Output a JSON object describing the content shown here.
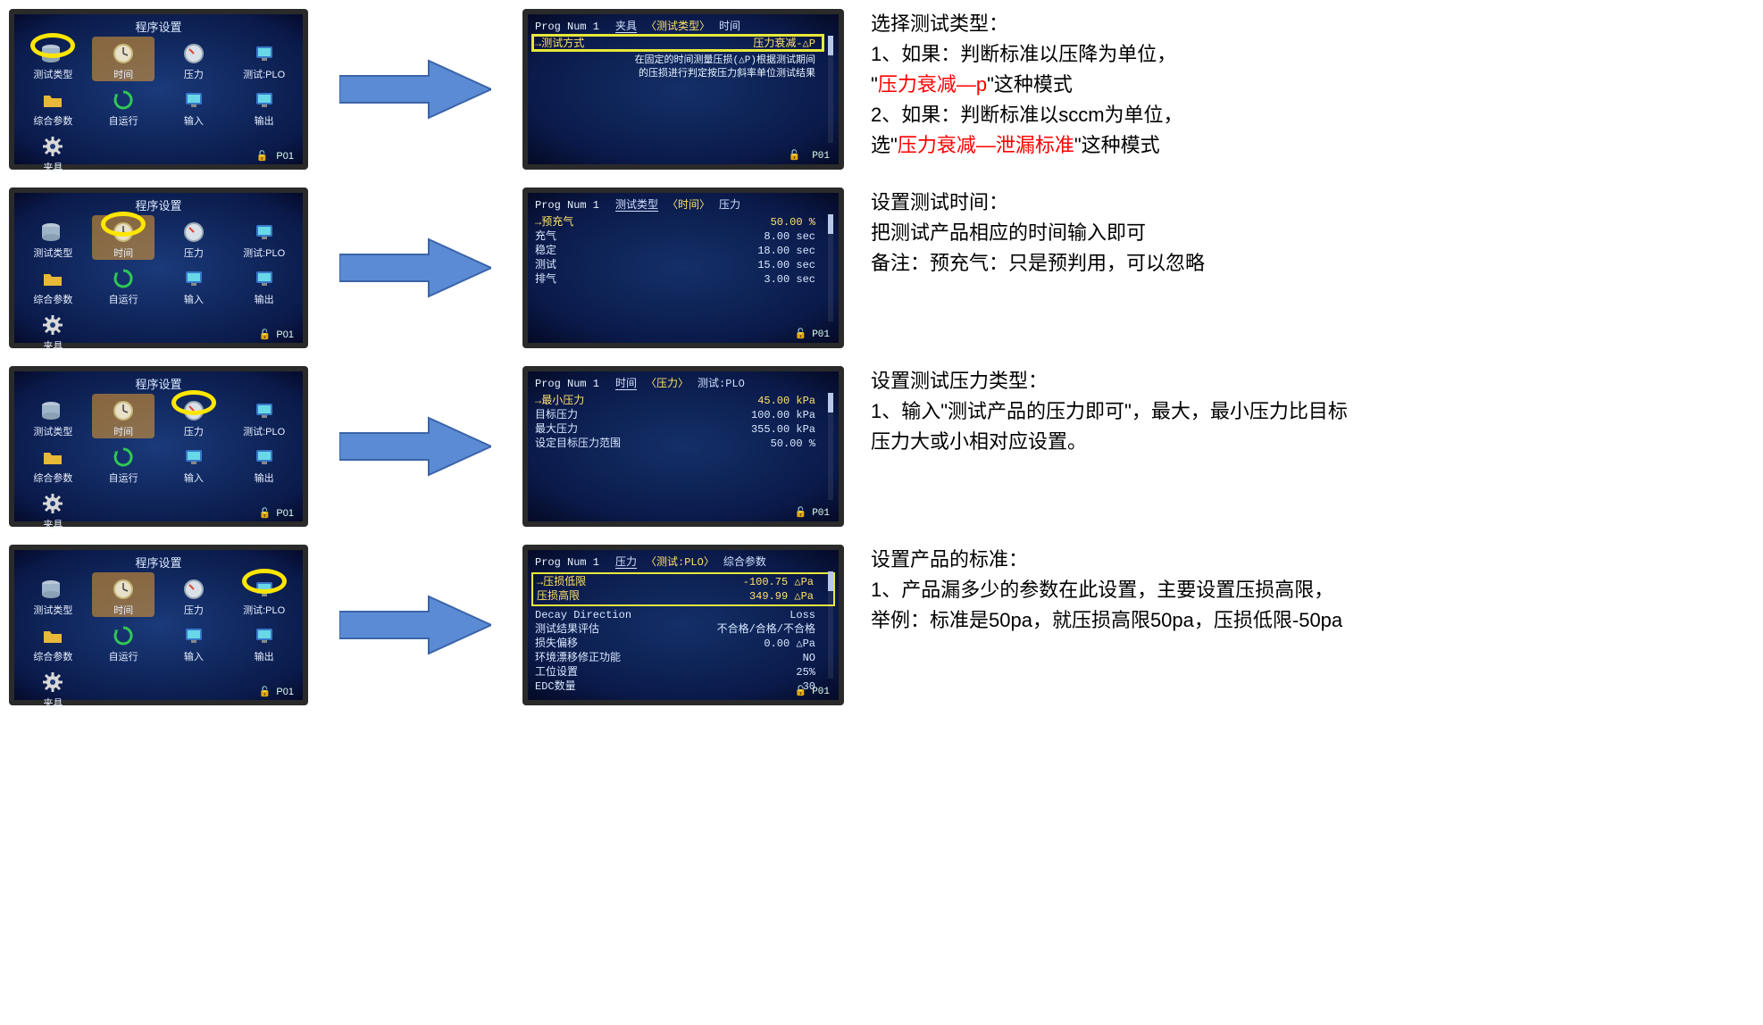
{
  "colors": {
    "screen_bg_center": "#1a3a7a",
    "screen_bg_edge": "#0a1a4a",
    "highlight_yellow": "#ffe06a",
    "ring_yellow": "#ffe600",
    "arrow_fill": "#5b8bd4",
    "arrow_stroke": "#3a64a8",
    "lock_green": "#2fdc4f",
    "text_red": "#ff0000",
    "text_black": "#000000"
  },
  "menu": {
    "title": "程序设置",
    "icons": [
      {
        "id": "test-type",
        "label": "测试类型",
        "svg": "db"
      },
      {
        "id": "time",
        "label": "时间",
        "svg": "clock",
        "selected": true
      },
      {
        "id": "pressure",
        "label": "压力",
        "svg": "gauge"
      },
      {
        "id": "test-plo",
        "label": "测试:PLO",
        "svg": "monitor"
      },
      {
        "id": "combo",
        "label": "综合参数",
        "svg": "folder"
      },
      {
        "id": "autorun",
        "label": "自运行",
        "svg": "cycle"
      },
      {
        "id": "input",
        "label": "输入",
        "svg": "monitor"
      },
      {
        "id": "output",
        "label": "输出",
        "svg": "monitor"
      },
      {
        "id": "fixture",
        "label": "夹具",
        "svg": "gear"
      }
    ],
    "footer_lock": "🔓",
    "footer_prog": "P01"
  },
  "detail": {
    "prog": "Prog Num 1",
    "tabs_row1": [
      "夹具",
      "〈测试类型〉",
      "时间"
    ],
    "tabs_row2": [
      "测试类型",
      "〈时间〉",
      "压力"
    ],
    "tabs_row3": [
      "时间",
      "〈压力〉",
      "测试:PLO"
    ],
    "tabs_row4": [
      "压力",
      "〈测试:PLO〉",
      "综合参数"
    ],
    "screen1": {
      "sel_key": "→测试方式",
      "sel_val": "压力衰减-△P",
      "desc1": "在固定的时间测量压损(△P)根据测试期间",
      "desc2": "的压损进行判定按压力斜率单位测试结果"
    },
    "screen2": {
      "rows": [
        {
          "k": "→预充气",
          "v": "50.00 %",
          "sel": true
        },
        {
          "k": "充气",
          "v": "8.00 sec"
        },
        {
          "k": "稳定",
          "v": "18.00 sec"
        },
        {
          "k": "测试",
          "v": "15.00 sec"
        },
        {
          "k": "排气",
          "v": "3.00 sec"
        }
      ]
    },
    "screen3": {
      "rows": [
        {
          "k": "→最小压力",
          "v": "45.00 kPa",
          "sel": true
        },
        {
          "k": "目标压力",
          "v": "100.00 kPa"
        },
        {
          "k": "最大压力",
          "v": "355.00 kPa"
        },
        {
          "k": "设定目标压力范围",
          "v": "50.00 %"
        }
      ]
    },
    "screen4": {
      "hi_rows": [
        {
          "k": "→压损低限",
          "v": "-100.75 △Pa"
        },
        {
          "k": "压损高限",
          "v": "349.99 △Pa"
        }
      ],
      "rows": [
        {
          "k": "Decay Direction",
          "v": "Loss"
        },
        {
          "k": "测试结果评估",
          "v": "不合格/合格/不合格"
        },
        {
          "k": "损失偏移",
          "v": "0.00 △Pa"
        },
        {
          "k": "环境漂移修正功能",
          "v": "NO"
        },
        {
          "k": "工位设置",
          "v": "25%"
        },
        {
          "k": "EDC数量",
          "v": "30"
        }
      ]
    }
  },
  "descriptions": {
    "r1": {
      "title": "选择测试类型：",
      "l1a": "1、如果：判断标准以压降为单位，",
      "l1b_pre": "\"",
      "l1b_red": "压力衰减—p",
      "l1b_post": "\"这种模式",
      "l2a": "2、如果：判断标准以sccm为单位，",
      "l2b_pre": "选\"",
      "l2b_red": "压力衰减—泄漏标准",
      "l2b_post": "\"这种模式"
    },
    "r2": {
      "title": "设置测试时间：",
      "l1": "把测试产品相应的时间输入即可",
      "l2": "备注：预充气：只是预判用，可以忽略"
    },
    "r3": {
      "title": "设置测试压力类型：",
      "l1": "1、输入\"测试产品的压力即可\"，最大，最小压力比目标压力大或小相对应设置。"
    },
    "r4": {
      "title": "设置产品的标准：",
      "l1": "1、产品漏多少的参数在此设置，主要设置压损高限，举例：标准是50pa，就压损高限50pa，压损低限-50pa"
    }
  }
}
